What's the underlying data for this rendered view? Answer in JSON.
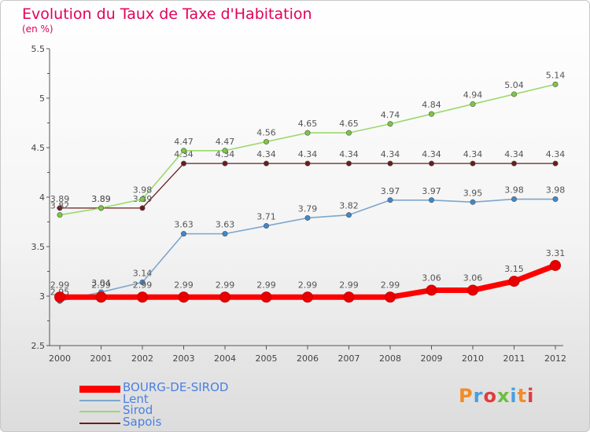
{
  "title": "Evolution du Taux de Taxe d'Habitation",
  "subtitle": "(en %)",
  "logo_text": "Proxiti",
  "colors": {
    "title": "#e4005a",
    "axis": "#555555",
    "legend_text": "#4a7fe0",
    "logo": [
      "#f28c28",
      "#4a9fe0",
      "#e03c3c",
      "#6abf40",
      "#4a9fe0",
      "#f28c28",
      "#e03c3c"
    ]
  },
  "chart_data": {
    "type": "line",
    "x": [
      "2000",
      "2001",
      "2002",
      "2003",
      "2004",
      "2005",
      "2006",
      "2007",
      "2008",
      "2009",
      "2010",
      "2011",
      "2012"
    ],
    "ylim": [
      2.5,
      5.5
    ],
    "yticks": [
      "2.5",
      "3",
      "3.5",
      "4",
      "4.5",
      "5",
      "5.5"
    ],
    "grid": false,
    "legend_position": "bottom-left",
    "series": [
      {
        "name": "Sapois",
        "color": "#6b1c1c",
        "marker_color": "#6b1c1c",
        "width": 1.3,
        "values": [
          3.89,
          3.89,
          3.89,
          4.34,
          4.34,
          4.34,
          4.34,
          4.34,
          4.34,
          4.34,
          4.34,
          4.34,
          4.34
        ],
        "labels": [
          "3.89",
          "3.89",
          "3.89",
          "4.34",
          "4.34",
          "4.34",
          "4.34",
          "4.34",
          "4.34",
          "4.34",
          "4.34",
          "4.34",
          "4.34"
        ]
      },
      {
        "name": "Sirod",
        "color": "#9cd96b",
        "marker_color": "#7dc742",
        "width": 1.6,
        "values": [
          3.82,
          3.89,
          3.98,
          4.47,
          4.47,
          4.56,
          4.65,
          4.65,
          4.74,
          4.84,
          4.94,
          5.04,
          5.14
        ],
        "labels": [
          "3.82",
          "3.89",
          "3.98",
          "4.47",
          "4.47",
          "4.56",
          "4.65",
          "4.65",
          "4.74",
          "4.84",
          "4.94",
          "5.04",
          "5.14"
        ]
      },
      {
        "name": "Lent",
        "color": "#7ea6cc",
        "marker_color": "#3f88cc",
        "width": 1.6,
        "values": [
          2.95,
          3.04,
          3.14,
          3.63,
          3.63,
          3.71,
          3.79,
          3.82,
          3.97,
          3.97,
          3.95,
          3.98,
          3.98
        ],
        "labels": [
          "2.95",
          "3.04",
          "3.14",
          "3.63",
          "3.63",
          "3.71",
          "3.79",
          "3.82",
          "3.97",
          "3.97",
          "3.95",
          "3.98",
          "3.98"
        ]
      },
      {
        "name": "BOURG-DE-SIROD",
        "color": "#ff0000",
        "marker_color": "#e80000",
        "width": 7,
        "values": [
          2.99,
          2.99,
          2.99,
          2.99,
          2.99,
          2.99,
          2.99,
          2.99,
          2.99,
          3.06,
          3.06,
          3.15,
          3.31
        ],
        "labels": [
          "2.99",
          "2.99",
          "2.99",
          "2.99",
          "2.99",
          "2.99",
          "2.99",
          "2.99",
          "2.99",
          "3.06",
          "3.06",
          "3.15",
          "3.31"
        ]
      }
    ],
    "legend_order": [
      "BOURG-DE-SIROD",
      "Lent",
      "Sirod",
      "Sapois"
    ]
  }
}
